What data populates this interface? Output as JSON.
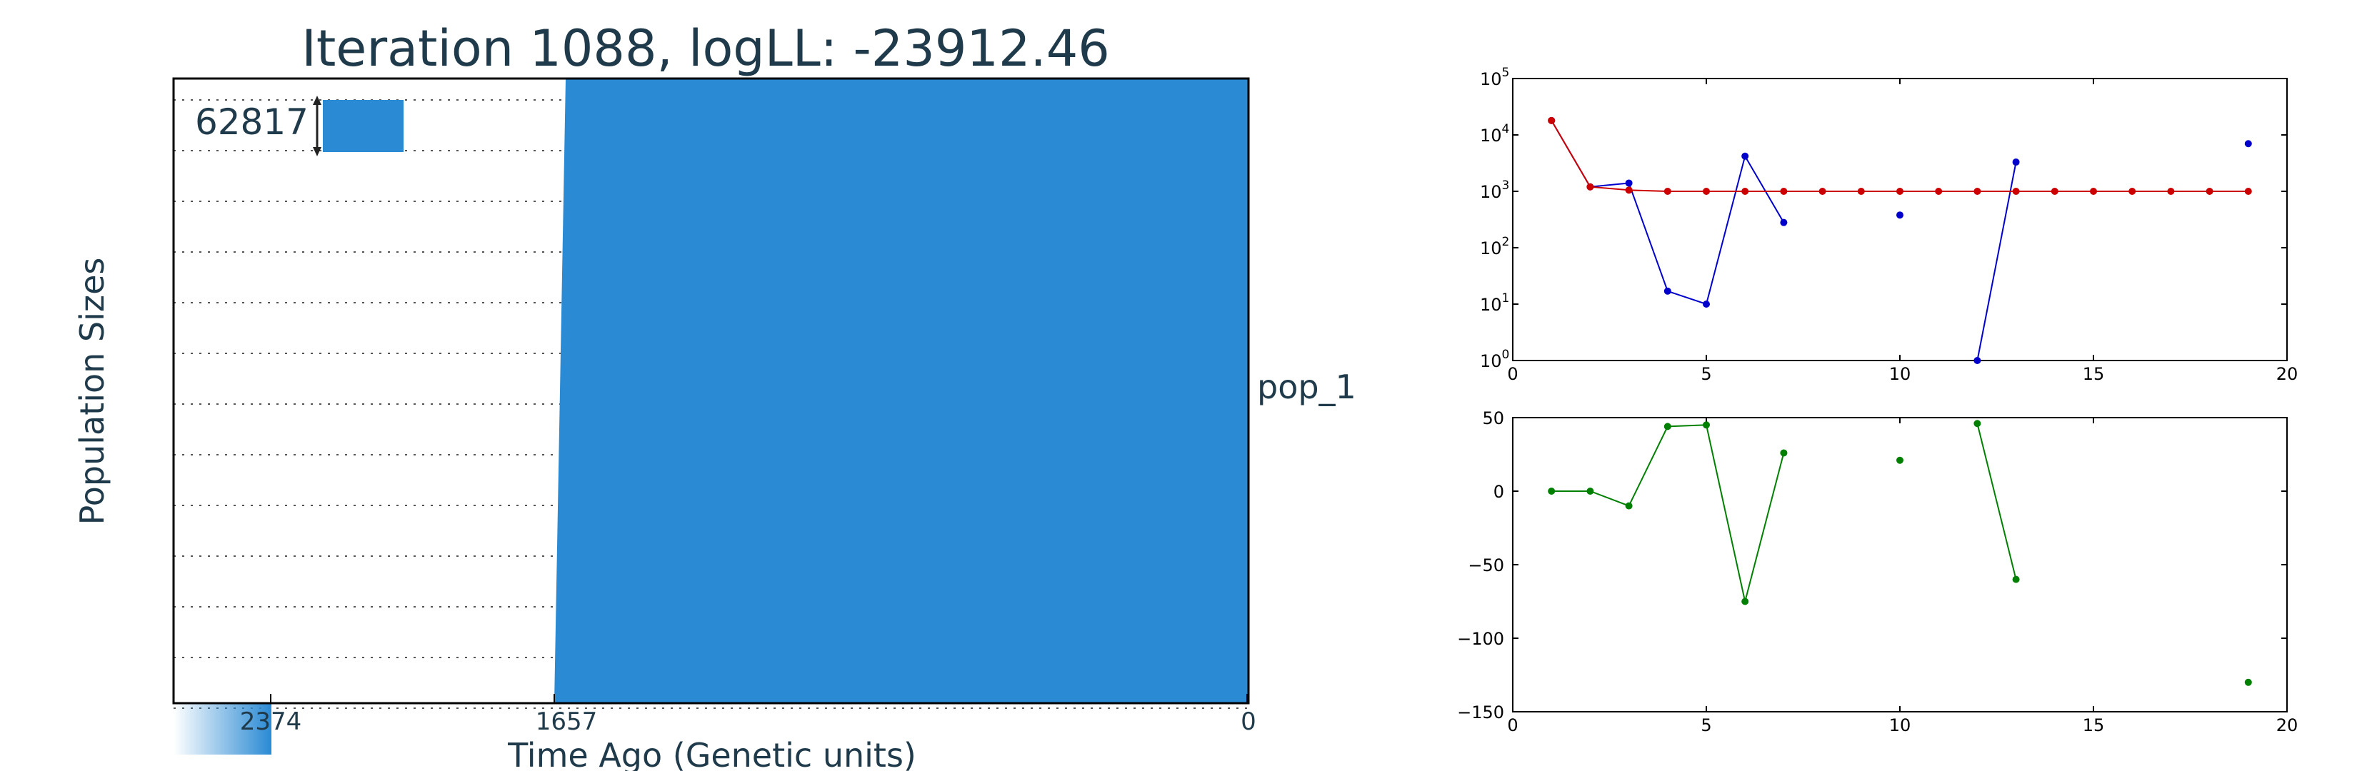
{
  "main_panel": {
    "title": "Iteration 1088, logLL:  -23912.46",
    "xlabel": "Time Ago (Genetic units)",
    "ylabel": "Population Sizes",
    "scale_value": "62817",
    "population_label": "pop_1",
    "time_ticks": [
      "2374",
      "1657",
      "0"
    ],
    "fill_color": "#2a8ad4",
    "title_color": "#1f3a4a"
  },
  "chart_data": [
    {
      "type": "line",
      "yscale": "log",
      "xlim": [
        0,
        20
      ],
      "ylim": [
        1,
        100000
      ],
      "x_ticks": [
        0,
        5,
        10,
        15,
        20
      ],
      "y_ticks": [
        1,
        10,
        100,
        1000,
        10000,
        100000
      ],
      "y_tick_labels": [
        [
          "10",
          "0"
        ],
        [
          "10",
          "1"
        ],
        [
          "10",
          "2"
        ],
        [
          "10",
          "3"
        ],
        [
          "10",
          "4"
        ],
        [
          "10",
          "5"
        ]
      ],
      "series": [
        {
          "color": "#0000cc",
          "x": [
            1,
            2,
            3,
            4,
            5,
            6,
            7,
            10,
            12,
            13,
            19
          ],
          "y": [
            18000,
            1200,
            1400,
            17,
            10,
            4200,
            280,
            380,
            1,
            3300,
            7000
          ],
          "connected_runs": [
            [
              1,
              7
            ],
            [
              12,
              13
            ]
          ]
        },
        {
          "color": "#cc0000",
          "x": [
            1,
            2,
            3,
            4,
            5,
            6,
            7,
            8,
            9,
            10,
            11,
            12,
            13,
            14,
            15,
            16,
            17,
            18,
            19
          ],
          "y": [
            18000,
            1200,
            1050,
            1000,
            1000,
            1000,
            1000,
            1000,
            1000,
            1000,
            1000,
            1000,
            1000,
            1000,
            1000,
            1000,
            1000,
            1000,
            1000
          ],
          "connected_runs": [
            [
              1,
              19
            ]
          ]
        }
      ]
    },
    {
      "type": "line",
      "xlim": [
        0,
        20
      ],
      "ylim": [
        -150,
        50
      ],
      "x_ticks": [
        0,
        5,
        10,
        15,
        20
      ],
      "y_ticks": [
        -150,
        -100,
        -50,
        0,
        50
      ],
      "y_tick_labels": [
        "−150",
        "−100",
        "−50",
        "0",
        "50"
      ],
      "series": [
        {
          "color": "#008000",
          "x": [
            1,
            2,
            3,
            4,
            5,
            6,
            7,
            10,
            12,
            13,
            19
          ],
          "y": [
            0,
            0,
            -10,
            44,
            45,
            -75,
            26,
            21,
            46,
            -60,
            -130
          ],
          "connected_runs": [
            [
              1,
              7
            ],
            [
              12,
              13
            ]
          ]
        }
      ]
    }
  ]
}
